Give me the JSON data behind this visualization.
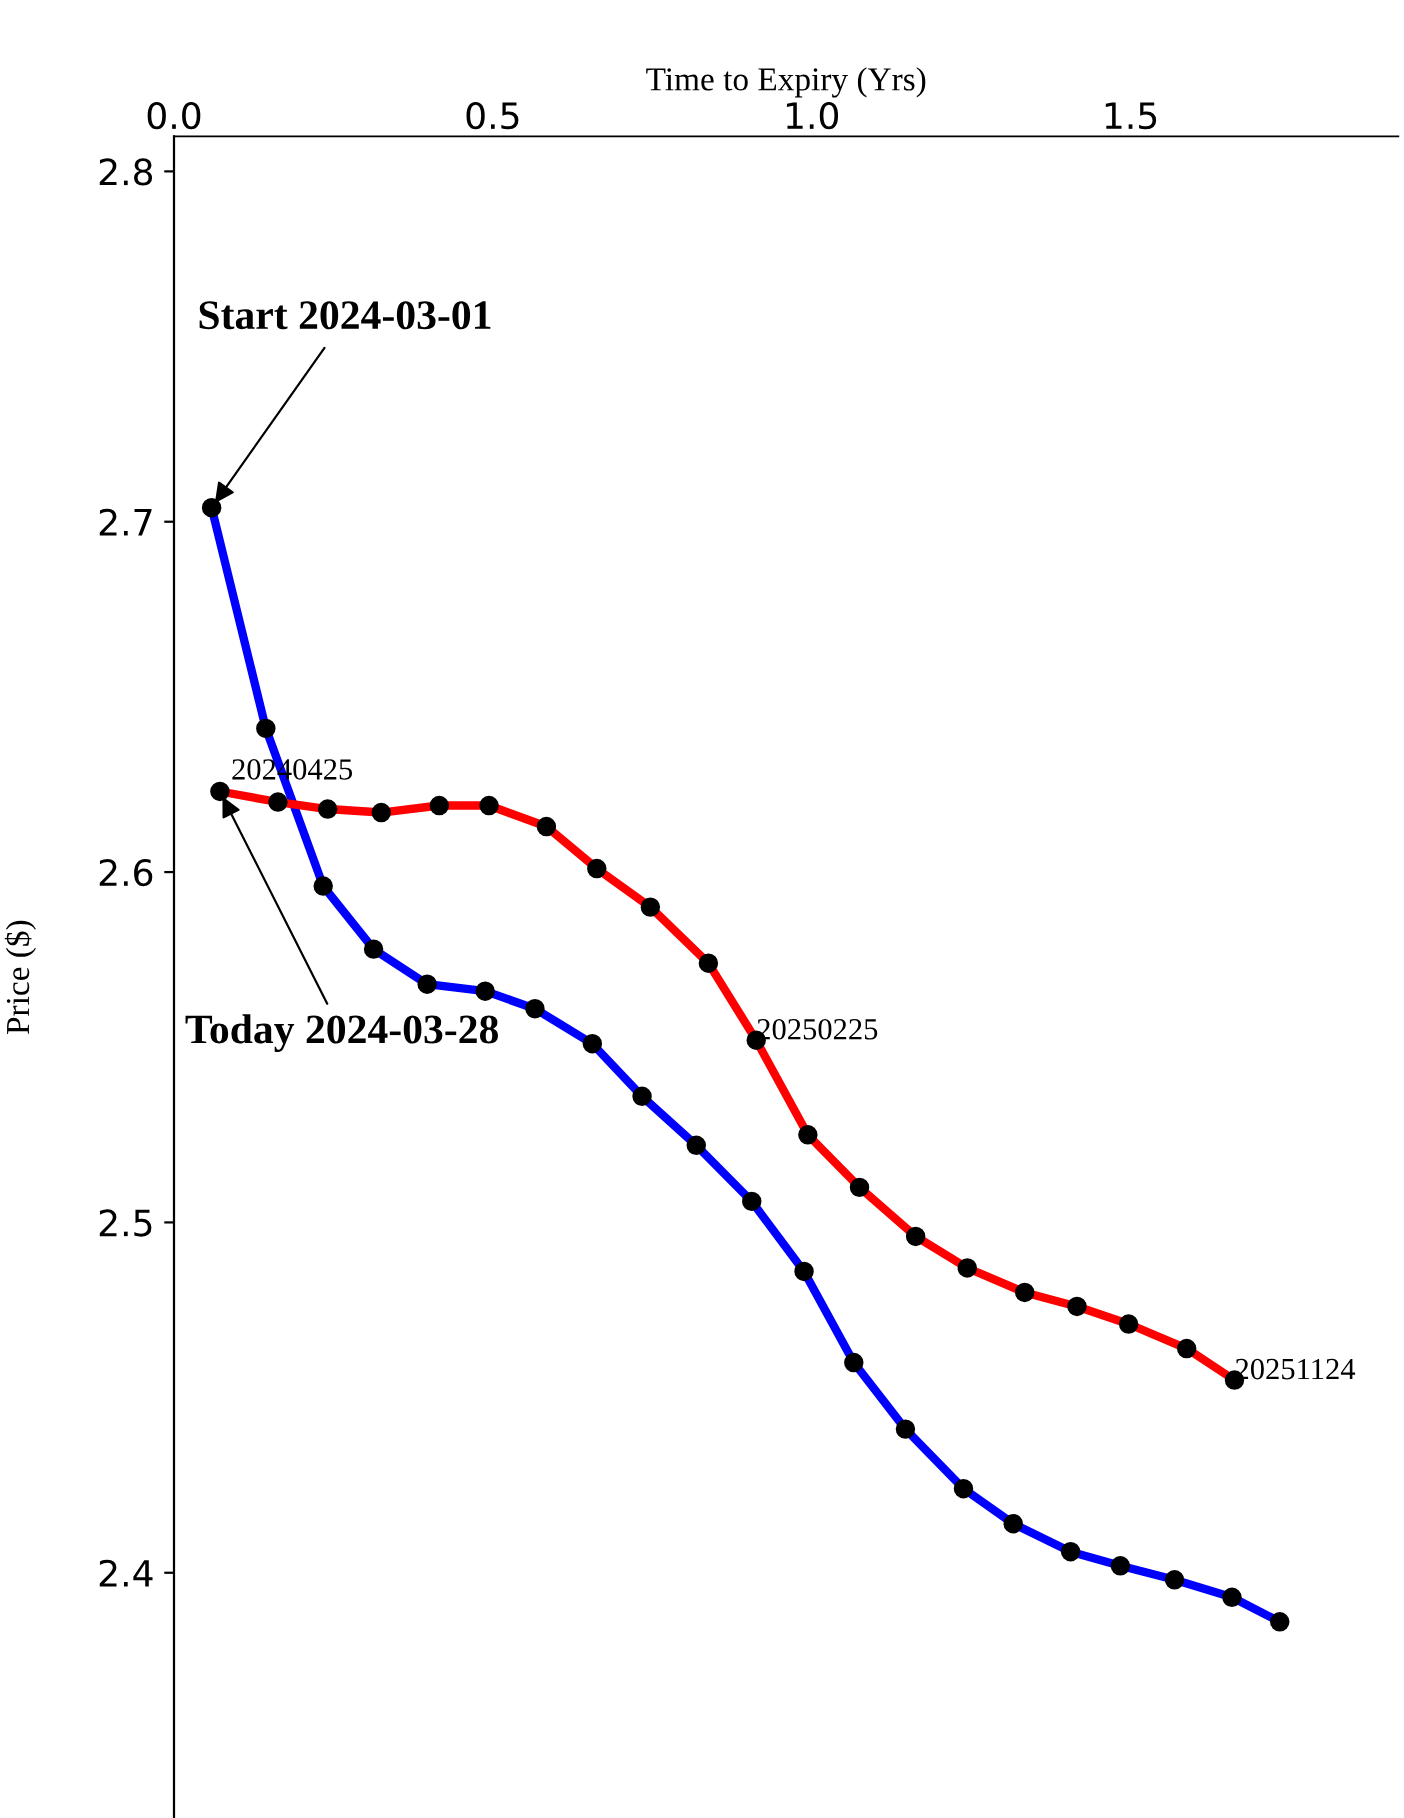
{
  "chart_data": {
    "type": "line",
    "xlabel": "Time to Expiry (Yrs)",
    "ylabel": "Price ($)",
    "xlim": [
      0,
      1.92
    ],
    "ylim": [
      2.33,
      2.81
    ],
    "xticks": [
      {
        "value": 0,
        "label": "0.0"
      },
      {
        "value": 0.5,
        "label": "0.5"
      },
      {
        "value": 1.0,
        "label": "1.0"
      },
      {
        "value": 1.5,
        "label": "1.5"
      }
    ],
    "yticks": [
      2.4,
      2.5,
      2.6,
      2.7,
      2.8
    ],
    "grid": false,
    "legend": false,
    "marker": "circle",
    "line_style": "solid",
    "series": [
      {
        "color": "#0000ff",
        "x": [
          0.059,
          0.144,
          0.234,
          0.313,
          0.397,
          0.488,
          0.566,
          0.656,
          0.734,
          0.819,
          0.906,
          0.988,
          1.066,
          1.147,
          1.238,
          1.316,
          1.406,
          1.484,
          1.569,
          1.659,
          1.734
        ],
        "values": [
          2.704,
          2.641,
          2.596,
          2.578,
          2.568,
          2.566,
          2.561,
          2.551,
          2.536,
          2.522,
          2.506,
          2.486,
          2.46,
          2.441,
          2.424,
          2.414,
          2.406,
          2.402,
          2.398,
          2.393,
          2.386
        ]
      },
      {
        "color": "#ff0000",
        "x": [
          0.072,
          0.163,
          0.241,
          0.325,
          0.416,
          0.494,
          0.584,
          0.663,
          0.747,
          0.838,
          0.913,
          0.994,
          1.075,
          1.163,
          1.244,
          1.334,
          1.416,
          1.497,
          1.588,
          1.663
        ],
        "values": [
          2.623,
          2.62,
          2.618,
          2.617,
          2.619,
          2.619,
          2.613,
          2.601,
          2.59,
          2.574,
          2.552,
          2.525,
          2.51,
          2.496,
          2.487,
          2.48,
          2.476,
          2.471,
          2.464,
          2.455
        ]
      }
    ],
    "annotations": [
      {
        "text": "Start 2024-03-01",
        "x": 0.059,
        "y": 2.704
      },
      {
        "text": "Today 2024-03-28",
        "x": 0.072,
        "y": 2.623
      },
      {
        "text": "20240425",
        "x": 0.072,
        "y": 2.623
      },
      {
        "text": "20250225",
        "x": 0.913,
        "y": 2.552
      },
      {
        "text": "20251124",
        "x": 1.663,
        "y": 2.455
      }
    ]
  }
}
